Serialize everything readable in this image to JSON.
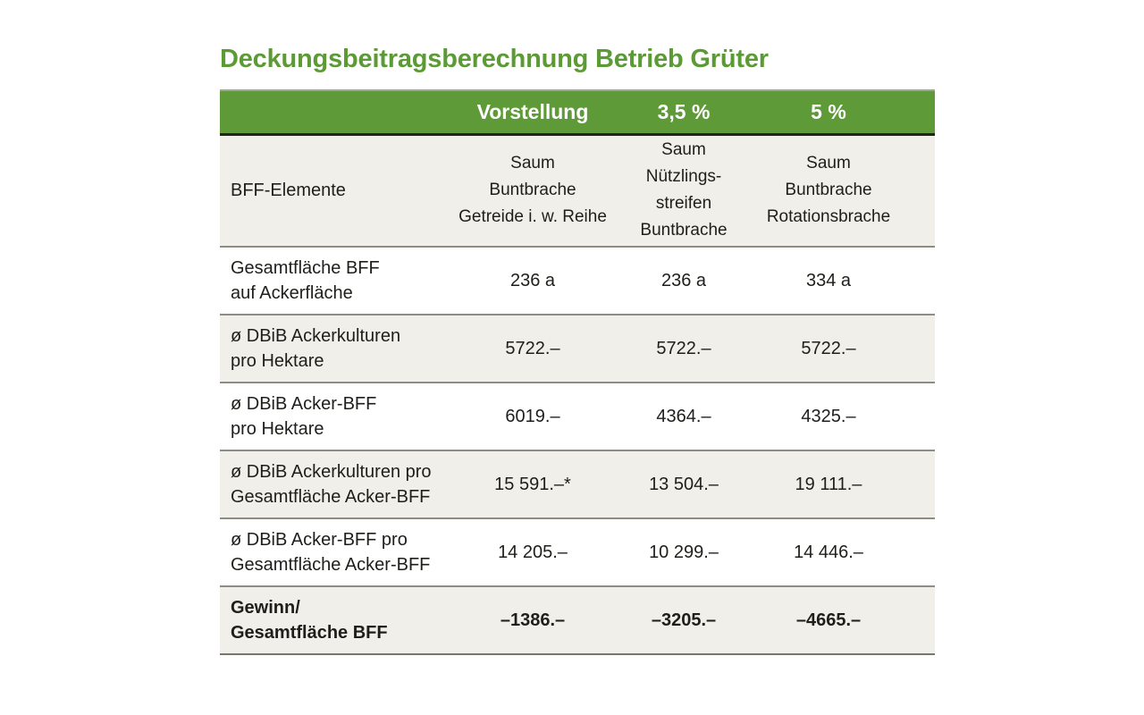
{
  "title": "Deckungsbeitragsberechnung Betrieb Grüter",
  "colors": {
    "header_green": "#5e9a38",
    "title_green": "#5b9a35",
    "row_beige": "#f1efe9",
    "row_white": "#ffffff",
    "text": "#1e1e1b",
    "separator_gray": "#8d8d86"
  },
  "table": {
    "scenario_header": [
      "Vorstellung",
      "3,5 %",
      "5 %"
    ],
    "subheader": {
      "label": "BFF-Elemente",
      "columns": [
        [
          "Saum",
          "Buntbrache",
          "Getreide i. w. Reihe"
        ],
        [
          "Saum",
          "Nützlings-",
          "streifen",
          "Buntbrache"
        ],
        [
          "Saum",
          "Buntbrache",
          "Rotationsbrache"
        ]
      ]
    },
    "rows": [
      {
        "label": [
          "Gesamtfläche BFF",
          "auf Ackerfläche"
        ],
        "values": [
          "236 a",
          "236 a",
          "334 a"
        ],
        "bold": false
      },
      {
        "label": [
          "ø DBiB Ackerkulturen",
          "pro Hektare"
        ],
        "values": [
          "5722.–",
          "5722.–",
          "5722.–"
        ],
        "bold": false
      },
      {
        "label": [
          "ø DBiB Acker-BFF",
          "pro Hektare"
        ],
        "values": [
          "6019.–",
          "4364.–",
          "4325.–"
        ],
        "bold": false
      },
      {
        "label": [
          "ø DBiB Ackerkulturen pro",
          "Gesamtfläche Acker-BFF"
        ],
        "values": [
          "15 591.–*",
          "13 504.–",
          "19 111.–"
        ],
        "bold": false
      },
      {
        "label": [
          "ø DBiB Acker-BFF pro",
          "Gesamtfläche Acker-BFF"
        ],
        "values": [
          "14 205.–",
          "10 299.–",
          "14 446.–"
        ],
        "bold": false
      },
      {
        "label": [
          "Gewinn/",
          "Gesamtfläche BFF"
        ],
        "values": [
          "–1386.–",
          "–3205.–",
          "–4665.–"
        ],
        "bold": true
      }
    ]
  },
  "chart_data": {
    "type": "table",
    "title": "Deckungsbeitragsberechnung Betrieb Grüter",
    "scenarios": [
      {
        "name": "Vorstellung",
        "bff_elemente": "Saum, Buntbrache, Getreide i. w. Reihe"
      },
      {
        "name": "3,5 %",
        "bff_elemente": "Saum, Nützlingsstreifen, Buntbrache"
      },
      {
        "name": "5 %",
        "bff_elemente": "Saum, Buntbrache, Rotationsbrache"
      }
    ],
    "metrics": [
      {
        "label": "Gesamtfläche BFF auf Ackerfläche",
        "values": [
          "236 a",
          "236 a",
          "334 a"
        ]
      },
      {
        "label": "ø DBiB Ackerkulturen pro Hektare",
        "values": [
          "5722.–",
          "5722.–",
          "5722.–"
        ]
      },
      {
        "label": "ø DBiB Acker-BFF pro Hektare",
        "values": [
          "6019.–",
          "4364.–",
          "4325.–"
        ]
      },
      {
        "label": "ø DBiB Ackerkulturen pro Gesamtfläche Acker-BFF",
        "values": [
          "15 591.–*",
          "13 504.–",
          "19 111.–"
        ]
      },
      {
        "label": "ø DBiB Acker-BFF pro Gesamtfläche Acker-BFF",
        "values": [
          "14 205.–",
          "10 299.–",
          "14 446.–"
        ]
      },
      {
        "label": "Gewinn/Gesamtfläche BFF",
        "values": [
          "–1386.–",
          "–3205.–",
          "–4665.–"
        ]
      }
    ]
  }
}
